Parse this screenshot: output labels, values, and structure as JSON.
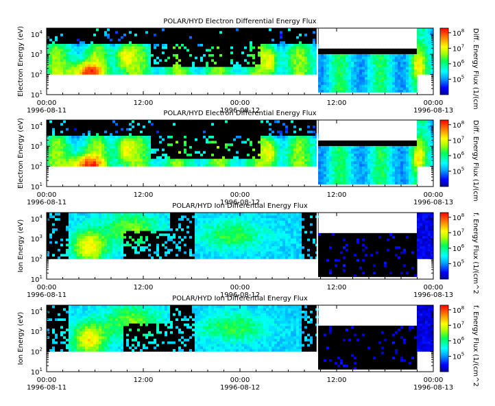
{
  "chart_data": [
    {
      "type": "heatmap",
      "title": "POLAR/HYD  Electron Differential Energy Flux",
      "ylabel": "Electron Energy (eV)",
      "yscale": "log",
      "ylim": [
        10,
        20000
      ],
      "y_ticks": [
        {
          "base": "10",
          "exp": "1"
        },
        {
          "base": "10",
          "exp": "2"
        },
        {
          "base": "10",
          "exp": "3"
        },
        {
          "base": "10",
          "exp": "4"
        }
      ],
      "x_ticks": [
        {
          "time": "00:00",
          "date": "1996-08-11"
        },
        {
          "time": "12:00",
          "date": ""
        },
        {
          "time": "00:00",
          "date": "1996-08-12"
        },
        {
          "time": "12:00",
          "date": ""
        },
        {
          "time": "00:00",
          "date": "1996-08-13"
        }
      ],
      "colorbar_label": "Diff. Energy Flux (1/(cm",
      "colorbar_ticks": [
        {
          "base": "10",
          "exp": "5"
        },
        {
          "base": "10",
          "exp": "6"
        },
        {
          "base": "10",
          "exp": "7"
        },
        {
          "base": "10",
          "exp": "8"
        }
      ],
      "colorbar_range": [
        "1e4",
        "2e8"
      ]
    },
    {
      "type": "heatmap",
      "title": "POLAR/HYD  Electron Differential Energy Flux",
      "ylabel": "Electron Energy (eV)",
      "yscale": "log",
      "ylim": [
        10,
        20000
      ],
      "y_ticks": [
        {
          "base": "10",
          "exp": "1"
        },
        {
          "base": "10",
          "exp": "2"
        },
        {
          "base": "10",
          "exp": "3"
        },
        {
          "base": "10",
          "exp": "4"
        }
      ],
      "x_ticks": [
        {
          "time": "00:00",
          "date": "1996-08-11"
        },
        {
          "time": "12:00",
          "date": ""
        },
        {
          "time": "00:00",
          "date": "1996-08-12"
        },
        {
          "time": "12:00",
          "date": ""
        },
        {
          "time": "00:00",
          "date": "1996-08-13"
        }
      ],
      "colorbar_label": "Diff. Energy Flux (1/(cm",
      "colorbar_ticks": [
        {
          "base": "10",
          "exp": "5"
        },
        {
          "base": "10",
          "exp": "6"
        },
        {
          "base": "10",
          "exp": "7"
        },
        {
          "base": "10",
          "exp": "8"
        }
      ],
      "colorbar_range": [
        "1e4",
        "2e8"
      ]
    },
    {
      "type": "heatmap",
      "title": "POLAR/HYD  Ion Differential Energy Flux",
      "ylabel": "Ion Energy (eV)",
      "yscale": "log",
      "ylim": [
        10,
        20000
      ],
      "y_ticks": [
        {
          "base": "10",
          "exp": "1"
        },
        {
          "base": "10",
          "exp": "2"
        },
        {
          "base": "10",
          "exp": "3"
        },
        {
          "base": "10",
          "exp": "4"
        }
      ],
      "x_ticks": [
        {
          "time": "00:00",
          "date": "1996-08-11"
        },
        {
          "time": "12:00",
          "date": ""
        },
        {
          "time": "00:00",
          "date": "1996-08-12"
        },
        {
          "time": "12:00",
          "date": ""
        },
        {
          "time": "00:00",
          "date": "1996-08-13"
        }
      ],
      "colorbar_label": "f. Energy Flux (1/(cm^2",
      "colorbar_ticks": [
        {
          "base": "10",
          "exp": "5"
        },
        {
          "base": "10",
          "exp": "6"
        },
        {
          "base": "10",
          "exp": "7"
        },
        {
          "base": "10",
          "exp": "8"
        }
      ],
      "colorbar_range": [
        "1e4",
        "2e8"
      ]
    },
    {
      "type": "heatmap",
      "title": "POLAR/HYD  Ion Differential Energy Flux",
      "ylabel": "Ion Energy (eV)",
      "yscale": "log",
      "ylim": [
        10,
        20000
      ],
      "y_ticks": [
        {
          "base": "10",
          "exp": "1"
        },
        {
          "base": "10",
          "exp": "2"
        },
        {
          "base": "10",
          "exp": "3"
        },
        {
          "base": "10",
          "exp": "4"
        }
      ],
      "x_ticks": [
        {
          "time": "00:00",
          "date": "1996-08-11"
        },
        {
          "time": "12:00",
          "date": ""
        },
        {
          "time": "00:00",
          "date": "1996-08-12"
        },
        {
          "time": "12:00",
          "date": ""
        },
        {
          "time": "00:00",
          "date": "1996-08-13"
        }
      ],
      "colorbar_label": "f. Energy Flux (1/(cm^2",
      "colorbar_ticks": [
        {
          "base": "10",
          "exp": "5"
        },
        {
          "base": "10",
          "exp": "6"
        },
        {
          "base": "10",
          "exp": "7"
        },
        {
          "base": "10",
          "exp": "8"
        }
      ],
      "colorbar_range": [
        "1e4",
        "2e8"
      ]
    }
  ]
}
